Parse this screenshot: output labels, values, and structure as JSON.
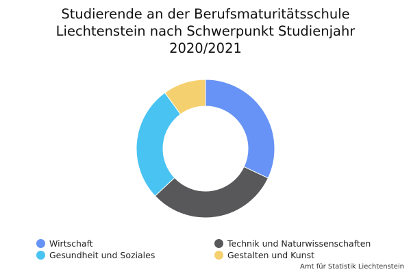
{
  "chart_data": {
    "type": "pie",
    "variant": "donut",
    "title": "Studierende an der Berufsmaturitätsschule\nLiechtenstein nach Schwerpunkt Studienjahr\n2020/2021",
    "slices": [
      {
        "label": "Wirtschaft",
        "value": 32,
        "color": "#6693f5"
      },
      {
        "label": "Technik und Naturwissenschaften",
        "value": 31,
        "color": "#58585a"
      },
      {
        "label": "Gesundheit und Soziales",
        "value": 27,
        "color": "#49c3f2"
      },
      {
        "label": "Gestalten und Kunst",
        "value": 10,
        "color": "#f5d06e"
      }
    ],
    "legend_position": "bottom"
  },
  "credit": "Amt für Statistik Liechtenstein"
}
